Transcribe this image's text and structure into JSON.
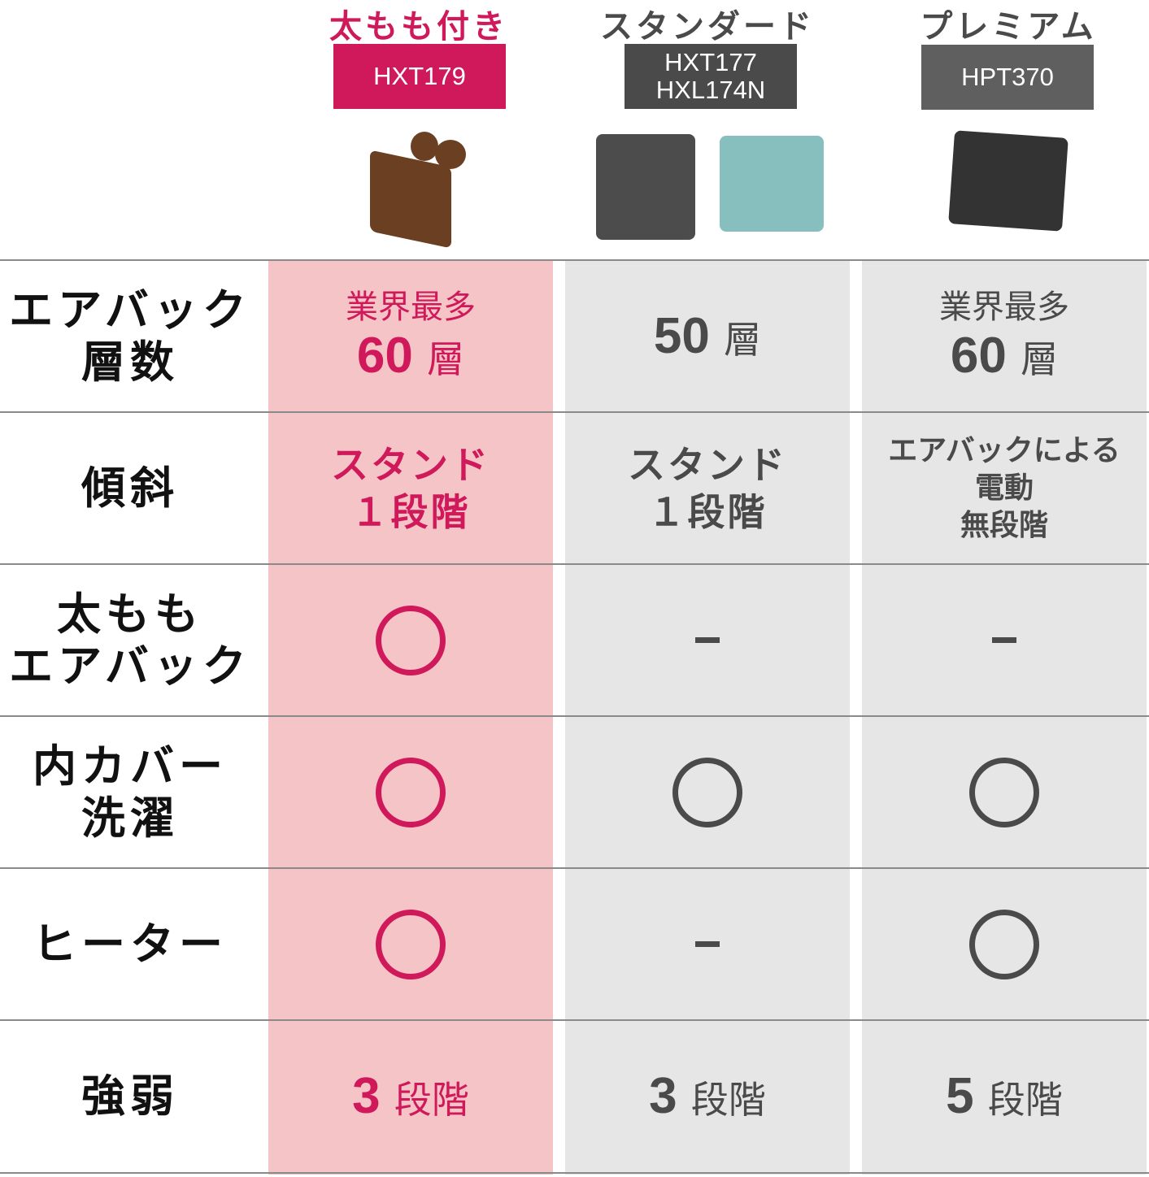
{
  "colors": {
    "accent": "#d0195a",
    "highlight_bg": "#f5c4c6",
    "neutral_bg": "#e6e6e6",
    "standard_badge": "#4a4a4a",
    "premium_badge": "#5f5f5f",
    "text_dark": "#4a4a4a"
  },
  "plans": [
    {
      "name": "太もも付き",
      "models": [
        "HXT179"
      ]
    },
    {
      "name": "スタンダード",
      "models": [
        "HXT177",
        "HXL174N"
      ]
    },
    {
      "name": "プレミアム",
      "models": [
        "HPT370"
      ]
    }
  ],
  "rows": [
    {
      "label": [
        "エアバック",
        "層数"
      ],
      "cells": [
        {
          "sub": "業界最多",
          "value": "60",
          "unit": "層"
        },
        {
          "sub": "",
          "value": "50",
          "unit": "層"
        },
        {
          "sub": "業界最多",
          "value": "60",
          "unit": "層"
        }
      ]
    },
    {
      "label": [
        "傾斜"
      ],
      "cells": [
        {
          "lines": [
            "スタンド",
            "１段階"
          ]
        },
        {
          "lines": [
            "スタンド",
            "１段階"
          ]
        },
        {
          "lines": [
            "エアバックによる",
            "電動",
            "無段階"
          ]
        }
      ]
    },
    {
      "label": [
        "太もも",
        "エアバック"
      ],
      "cells": [
        {
          "mark": "circle"
        },
        {
          "mark": "dash"
        },
        {
          "mark": "dash"
        }
      ]
    },
    {
      "label": [
        "内カバー",
        "洗濯"
      ],
      "cells": [
        {
          "mark": "circle"
        },
        {
          "mark": "circle"
        },
        {
          "mark": "circle"
        }
      ]
    },
    {
      "label": [
        "ヒーター"
      ],
      "cells": [
        {
          "mark": "circle"
        },
        {
          "mark": "dash"
        },
        {
          "mark": "circle"
        }
      ]
    },
    {
      "label": [
        "強弱"
      ],
      "cells": [
        {
          "value": "3",
          "unit": "段階"
        },
        {
          "value": "3",
          "unit": "段階"
        },
        {
          "value": "5",
          "unit": "段階"
        }
      ]
    }
  ]
}
